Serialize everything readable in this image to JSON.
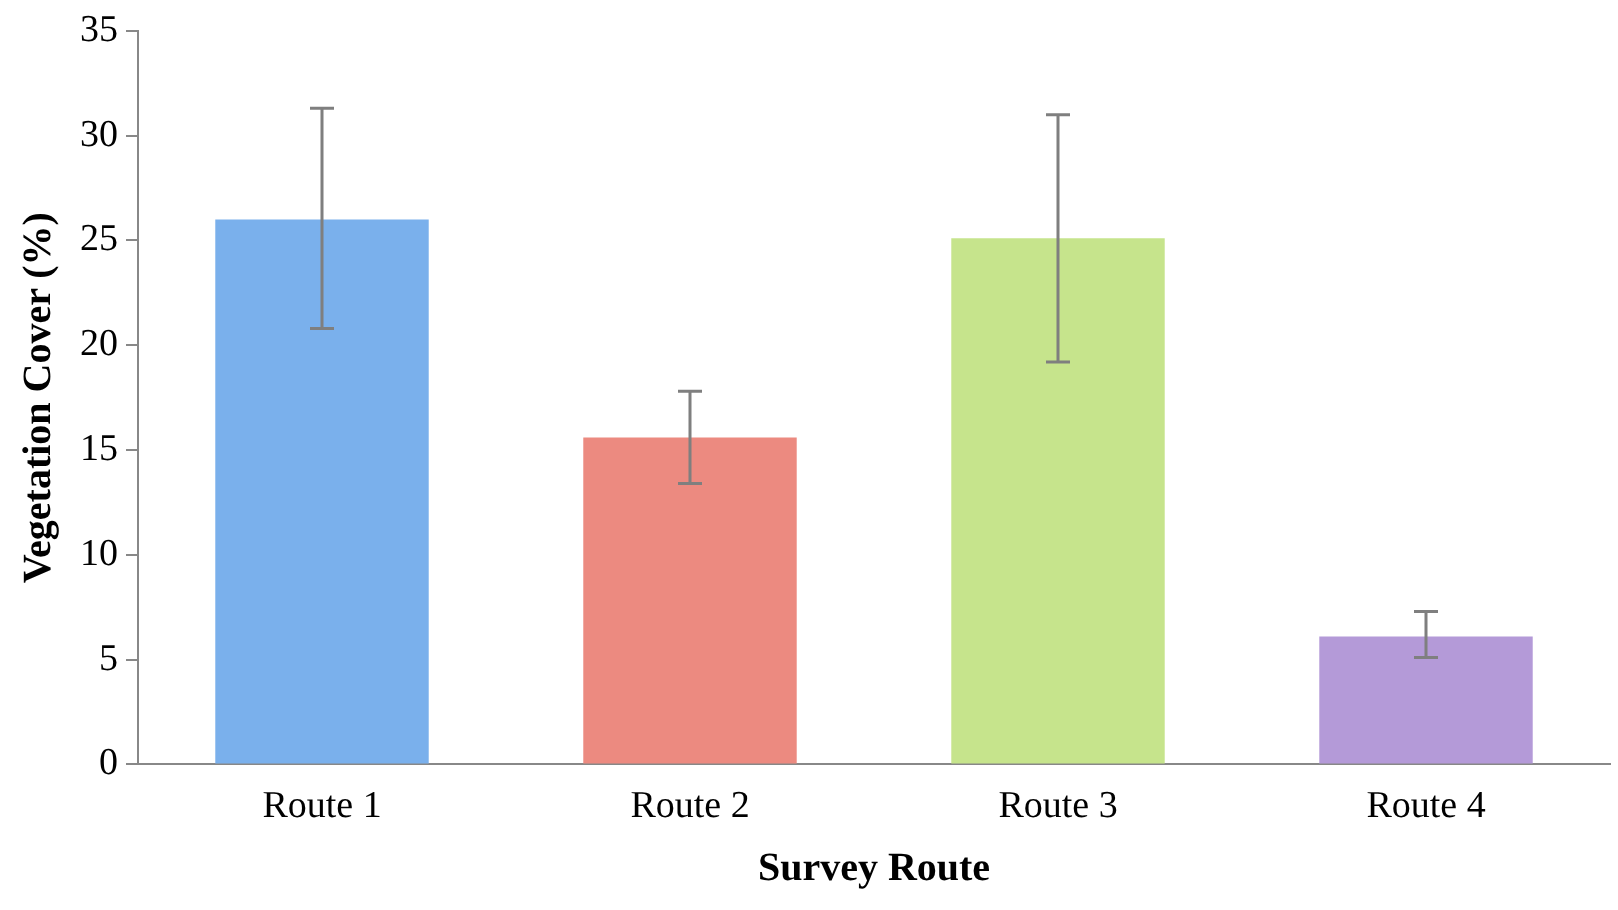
{
  "chart_data": {
    "type": "bar",
    "xlabel": "Survey Route",
    "ylabel": "Vegetation Cover (%)",
    "categories": [
      "Route 1",
      "Route 2",
      "Route 3",
      "Route 4"
    ],
    "values": [
      26,
      15.6,
      25.1,
      6.1
    ],
    "colors": [
      "#7ab0ec",
      "#ec8a80",
      "#c6e48c",
      "#b49ad8"
    ],
    "errors": [
      [
        20.8,
        31.3
      ],
      [
        13.4,
        17.8
      ],
      [
        19.2,
        31
      ],
      [
        5.1,
        7.3
      ]
    ],
    "ylim": [
      0,
      35
    ],
    "yticks": [
      0,
      5,
      10,
      15,
      20,
      25,
      30,
      35
    ],
    "grid": false,
    "legend": false
  }
}
